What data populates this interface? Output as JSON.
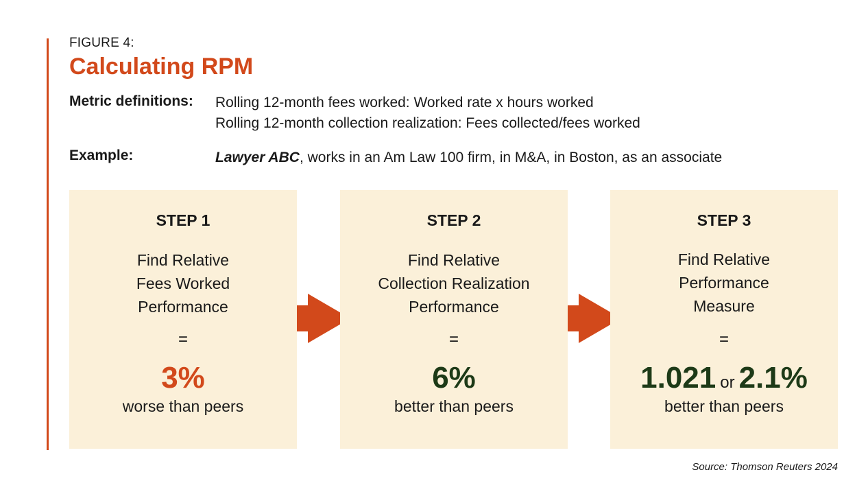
{
  "figure_label": "FIGURE 4:",
  "title": "Calculating RPM",
  "definitions": {
    "label": "Metric definitions:",
    "lines": [
      "Rolling 12-month fees worked: Worked rate x hours worked",
      "Rolling 12-month collection realization: Fees collected/fees worked"
    ]
  },
  "example": {
    "label": "Example:",
    "name": "Lawyer ABC",
    "rest": ", works in an Am Law 100 firm, in M&A, in Boston, as an associate"
  },
  "steps": [
    {
      "title": "STEP 1",
      "desc": [
        "Find Relative",
        "Fees Worked",
        "Performance"
      ],
      "equals": "=",
      "value": "3%",
      "caption": "worse than peers",
      "value_color": "#d2491b"
    },
    {
      "title": "STEP 2",
      "desc": [
        "Find Relative",
        "Collection Realization",
        "Performance"
      ],
      "equals": "=",
      "value": "6%",
      "caption": "better than peers",
      "value_color": "#1d3a17"
    },
    {
      "title": "STEP 3",
      "desc": [
        "Find Relative",
        "Performance",
        "Measure"
      ],
      "equals": "=",
      "value": "1.021",
      "connector": "or",
      "value2": "2.1%",
      "caption": "better than peers",
      "value_color": "#1d3a17"
    }
  ],
  "source": "Source: Thomson Reuters 2024",
  "colors": {
    "accent": "#d2491b",
    "box_bg": "#fbf0d9",
    "positive": "#1d3a17"
  },
  "icons": [
    "arrow-right-icon",
    "arrow-right-icon"
  ]
}
